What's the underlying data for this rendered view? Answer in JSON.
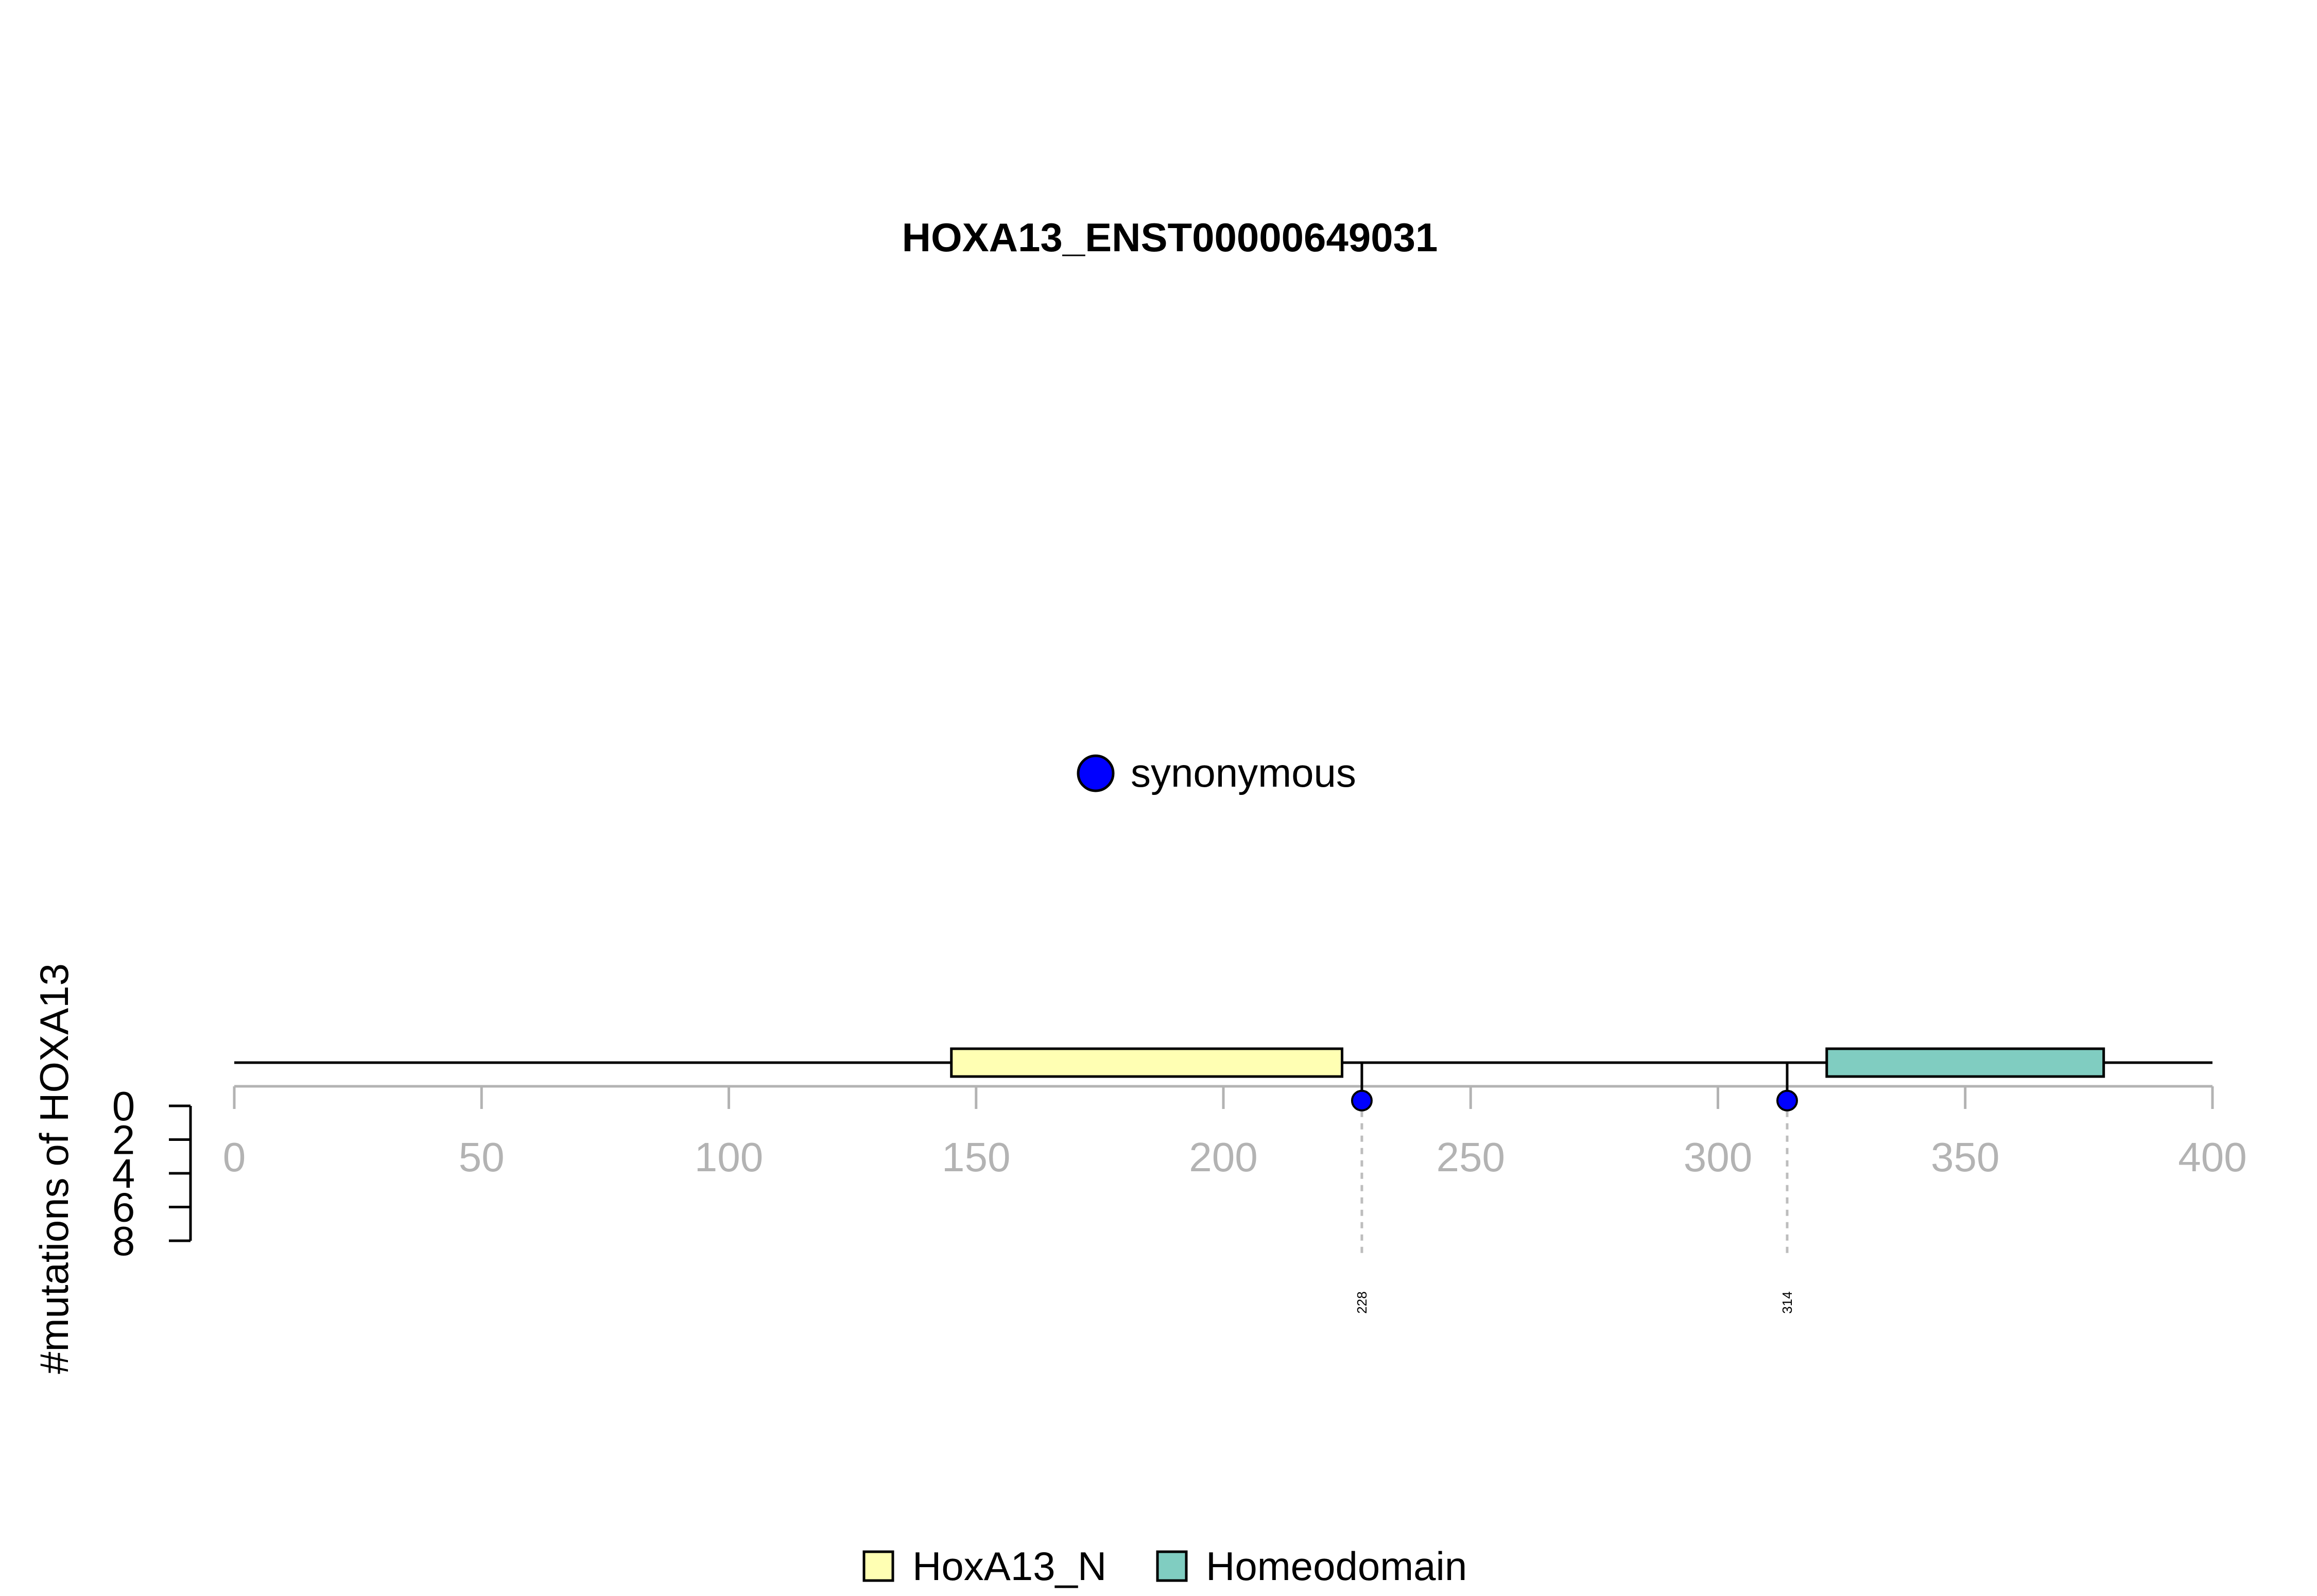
{
  "chart_data": {
    "type": "lollipop",
    "title": "HOXA13_ENST00000649031",
    "ylabel": "#mutations of HOXA13",
    "xlim": [
      0,
      400
    ],
    "x_ticks": [
      0,
      50,
      100,
      150,
      200,
      250,
      300,
      350,
      400
    ],
    "y_ticks": [
      0,
      2,
      4,
      6,
      8
    ],
    "ylim": [
      0,
      8
    ],
    "protein_length": 400,
    "domains": [
      {
        "name": "HoxA13_N",
        "start": 145,
        "end": 224,
        "color": "#ffffb3"
      },
      {
        "name": "Homeodomain",
        "start": 322,
        "end": 378,
        "color": "#80cdc1"
      }
    ],
    "mutations": [
      {
        "position": 228,
        "count": 1,
        "type": "synonymous",
        "label": "228"
      },
      {
        "position": 314,
        "count": 1,
        "type": "synonymous",
        "label": "314"
      }
    ],
    "mutation_legend": [
      {
        "label": "synonymous",
        "color": "#0000ff"
      }
    ],
    "domain_legend": [
      {
        "label": "HoxA13_N",
        "color": "#ffffb3"
      },
      {
        "label": "Homeodomain",
        "color": "#80cdc1"
      }
    ]
  }
}
